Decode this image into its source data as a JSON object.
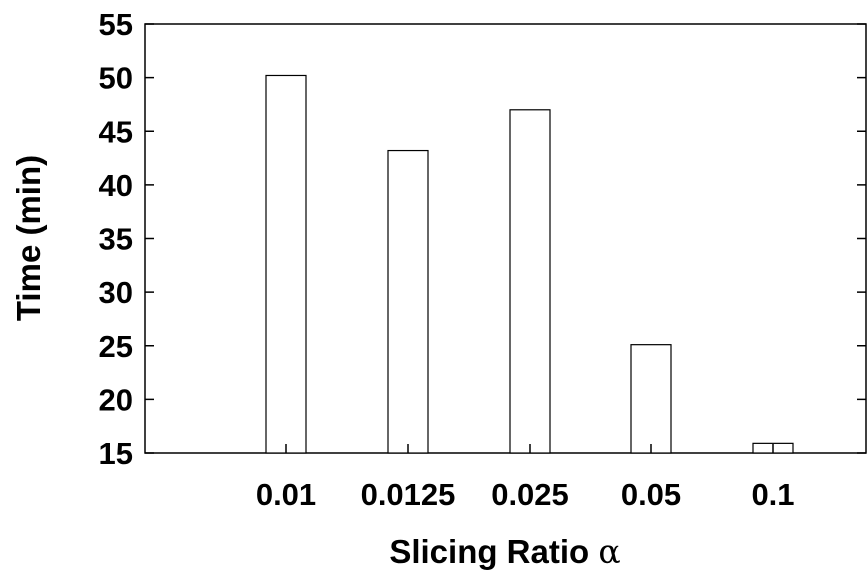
{
  "chart_data": {
    "type": "bar",
    "categories": [
      "0.01",
      "0.0125",
      "0.025",
      "0.05",
      "0.1"
    ],
    "values": [
      50.2,
      43.2,
      47.0,
      25.1,
      15.9
    ],
    "title": "",
    "xlabel": "Slicing Ratio",
    "xlabel_symbol": "α",
    "ylabel": "Time (min)",
    "ylim": [
      15,
      55
    ],
    "yticks": [
      "15",
      "20",
      "25",
      "30",
      "35",
      "40",
      "45",
      "50",
      "55"
    ],
    "grid": false,
    "legend": "none",
    "bar_fill": "#ffffff",
    "bar_stroke": "#000000"
  }
}
